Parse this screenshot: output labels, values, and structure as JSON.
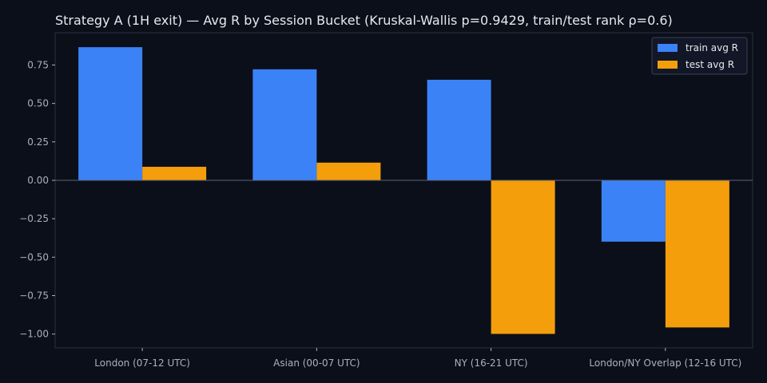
{
  "chart_data": {
    "type": "bar",
    "title": "Strategy A (1H exit) — Avg R by Session Bucket (Kruskal-Wallis p=0.9429, train/test rank ρ=0.6)",
    "xlabel": "",
    "ylabel": "",
    "categories": [
      "London (07-12 UTC)",
      "Asian (00-07 UTC)",
      "NY (16-21 UTC)",
      "London/NY Overlap (12-16 UTC)"
    ],
    "series": [
      {
        "name": "train avg R",
        "color": "#3b82f6",
        "values": [
          0.866,
          0.722,
          0.654,
          -0.399
        ]
      },
      {
        "name": "test avg R",
        "color": "#f59e0b",
        "values": [
          0.088,
          0.115,
          -0.999,
          -0.957
        ]
      }
    ],
    "ylim": [
      -1.09,
      0.96
    ],
    "yticks": [
      "0.75",
      "0.50",
      "0.25",
      "0.00",
      "−0.25",
      "−0.50",
      "−0.75",
      "−1.00"
    ],
    "ytick_values": [
      0.75,
      0.5,
      0.25,
      0,
      -0.25,
      -0.5,
      -0.75,
      -1.0
    ],
    "grid": false,
    "legend_position": "top-right"
  }
}
